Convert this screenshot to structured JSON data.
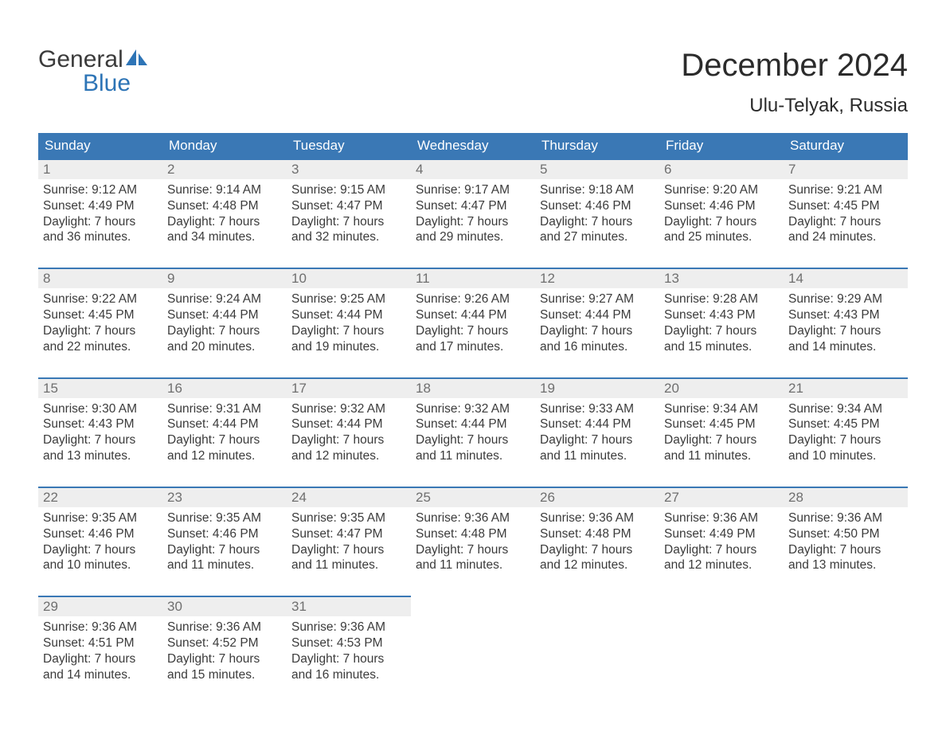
{
  "logo": {
    "line1": "General",
    "line2": "Blue",
    "sail_color": "#2d74b6"
  },
  "header": {
    "month": "December 2024",
    "location": "Ulu-Telyak, Russia"
  },
  "day_labels": [
    "Sunday",
    "Monday",
    "Tuesday",
    "Wednesday",
    "Thursday",
    "Friday",
    "Saturday"
  ],
  "colors": {
    "header_bg": "#3a78b5",
    "header_text": "#ffffff",
    "daynum_bg": "#eeeeee",
    "daynum_border": "#3a78b5",
    "daynum_text": "#6f6f6f",
    "body_text": "#3b3b3b",
    "background": "#ffffff"
  },
  "weeks": [
    [
      {
        "n": "1",
        "sr": "Sunrise: 9:12 AM",
        "ss": "Sunset: 4:49 PM",
        "d1": "Daylight: 7 hours",
        "d2": "and 36 minutes."
      },
      {
        "n": "2",
        "sr": "Sunrise: 9:14 AM",
        "ss": "Sunset: 4:48 PM",
        "d1": "Daylight: 7 hours",
        "d2": "and 34 minutes."
      },
      {
        "n": "3",
        "sr": "Sunrise: 9:15 AM",
        "ss": "Sunset: 4:47 PM",
        "d1": "Daylight: 7 hours",
        "d2": "and 32 minutes."
      },
      {
        "n": "4",
        "sr": "Sunrise: 9:17 AM",
        "ss": "Sunset: 4:47 PM",
        "d1": "Daylight: 7 hours",
        "d2": "and 29 minutes."
      },
      {
        "n": "5",
        "sr": "Sunrise: 9:18 AM",
        "ss": "Sunset: 4:46 PM",
        "d1": "Daylight: 7 hours",
        "d2": "and 27 minutes."
      },
      {
        "n": "6",
        "sr": "Sunrise: 9:20 AM",
        "ss": "Sunset: 4:46 PM",
        "d1": "Daylight: 7 hours",
        "d2": "and 25 minutes."
      },
      {
        "n": "7",
        "sr": "Sunrise: 9:21 AM",
        "ss": "Sunset: 4:45 PM",
        "d1": "Daylight: 7 hours",
        "d2": "and 24 minutes."
      }
    ],
    [
      {
        "n": "8",
        "sr": "Sunrise: 9:22 AM",
        "ss": "Sunset: 4:45 PM",
        "d1": "Daylight: 7 hours",
        "d2": "and 22 minutes."
      },
      {
        "n": "9",
        "sr": "Sunrise: 9:24 AM",
        "ss": "Sunset: 4:44 PM",
        "d1": "Daylight: 7 hours",
        "d2": "and 20 minutes."
      },
      {
        "n": "10",
        "sr": "Sunrise: 9:25 AM",
        "ss": "Sunset: 4:44 PM",
        "d1": "Daylight: 7 hours",
        "d2": "and 19 minutes."
      },
      {
        "n": "11",
        "sr": "Sunrise: 9:26 AM",
        "ss": "Sunset: 4:44 PM",
        "d1": "Daylight: 7 hours",
        "d2": "and 17 minutes."
      },
      {
        "n": "12",
        "sr": "Sunrise: 9:27 AM",
        "ss": "Sunset: 4:44 PM",
        "d1": "Daylight: 7 hours",
        "d2": "and 16 minutes."
      },
      {
        "n": "13",
        "sr": "Sunrise: 9:28 AM",
        "ss": "Sunset: 4:43 PM",
        "d1": "Daylight: 7 hours",
        "d2": "and 15 minutes."
      },
      {
        "n": "14",
        "sr": "Sunrise: 9:29 AM",
        "ss": "Sunset: 4:43 PM",
        "d1": "Daylight: 7 hours",
        "d2": "and 14 minutes."
      }
    ],
    [
      {
        "n": "15",
        "sr": "Sunrise: 9:30 AM",
        "ss": "Sunset: 4:43 PM",
        "d1": "Daylight: 7 hours",
        "d2": "and 13 minutes."
      },
      {
        "n": "16",
        "sr": "Sunrise: 9:31 AM",
        "ss": "Sunset: 4:44 PM",
        "d1": "Daylight: 7 hours",
        "d2": "and 12 minutes."
      },
      {
        "n": "17",
        "sr": "Sunrise: 9:32 AM",
        "ss": "Sunset: 4:44 PM",
        "d1": "Daylight: 7 hours",
        "d2": "and 12 minutes."
      },
      {
        "n": "18",
        "sr": "Sunrise: 9:32 AM",
        "ss": "Sunset: 4:44 PM",
        "d1": "Daylight: 7 hours",
        "d2": "and 11 minutes."
      },
      {
        "n": "19",
        "sr": "Sunrise: 9:33 AM",
        "ss": "Sunset: 4:44 PM",
        "d1": "Daylight: 7 hours",
        "d2": "and 11 minutes."
      },
      {
        "n": "20",
        "sr": "Sunrise: 9:34 AM",
        "ss": "Sunset: 4:45 PM",
        "d1": "Daylight: 7 hours",
        "d2": "and 11 minutes."
      },
      {
        "n": "21",
        "sr": "Sunrise: 9:34 AM",
        "ss": "Sunset: 4:45 PM",
        "d1": "Daylight: 7 hours",
        "d2": "and 10 minutes."
      }
    ],
    [
      {
        "n": "22",
        "sr": "Sunrise: 9:35 AM",
        "ss": "Sunset: 4:46 PM",
        "d1": "Daylight: 7 hours",
        "d2": "and 10 minutes."
      },
      {
        "n": "23",
        "sr": "Sunrise: 9:35 AM",
        "ss": "Sunset: 4:46 PM",
        "d1": "Daylight: 7 hours",
        "d2": "and 11 minutes."
      },
      {
        "n": "24",
        "sr": "Sunrise: 9:35 AM",
        "ss": "Sunset: 4:47 PM",
        "d1": "Daylight: 7 hours",
        "d2": "and 11 minutes."
      },
      {
        "n": "25",
        "sr": "Sunrise: 9:36 AM",
        "ss": "Sunset: 4:48 PM",
        "d1": "Daylight: 7 hours",
        "d2": "and 11 minutes."
      },
      {
        "n": "26",
        "sr": "Sunrise: 9:36 AM",
        "ss": "Sunset: 4:48 PM",
        "d1": "Daylight: 7 hours",
        "d2": "and 12 minutes."
      },
      {
        "n": "27",
        "sr": "Sunrise: 9:36 AM",
        "ss": "Sunset: 4:49 PM",
        "d1": "Daylight: 7 hours",
        "d2": "and 12 minutes."
      },
      {
        "n": "28",
        "sr": "Sunrise: 9:36 AM",
        "ss": "Sunset: 4:50 PM",
        "d1": "Daylight: 7 hours",
        "d2": "and 13 minutes."
      }
    ],
    [
      {
        "n": "29",
        "sr": "Sunrise: 9:36 AM",
        "ss": "Sunset: 4:51 PM",
        "d1": "Daylight: 7 hours",
        "d2": "and 14 minutes."
      },
      {
        "n": "30",
        "sr": "Sunrise: 9:36 AM",
        "ss": "Sunset: 4:52 PM",
        "d1": "Daylight: 7 hours",
        "d2": "and 15 minutes."
      },
      {
        "n": "31",
        "sr": "Sunrise: 9:36 AM",
        "ss": "Sunset: 4:53 PM",
        "d1": "Daylight: 7 hours",
        "d2": "and 16 minutes."
      },
      null,
      null,
      null,
      null
    ]
  ]
}
